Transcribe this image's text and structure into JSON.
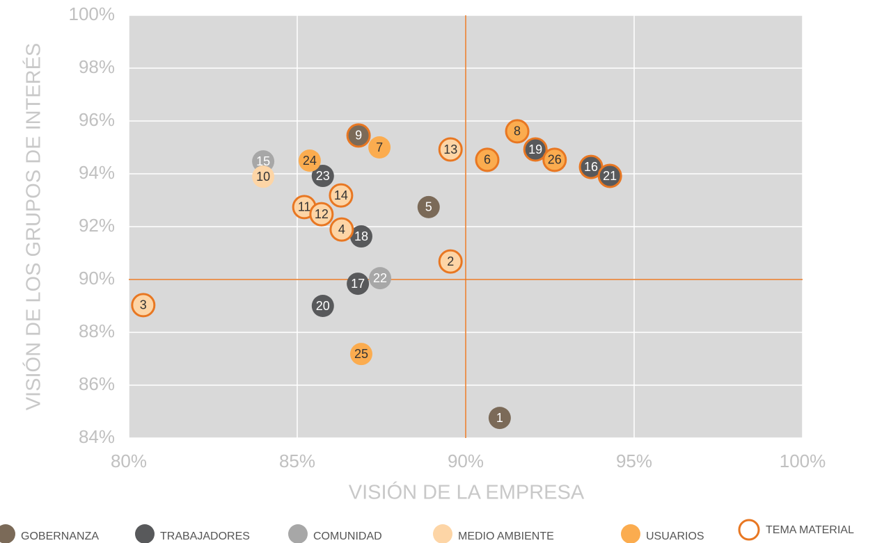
{
  "chart_data": {
    "type": "scatter",
    "x_label": "VISIÓN DE LA EMPRESA",
    "y_label": "VISIÓN DE LOS GRUPOS DE INTERÉS",
    "xlim": [
      80,
      100
    ],
    "ylim": [
      84,
      100
    ],
    "xticks": [
      {
        "value": 80,
        "label": "80%"
      },
      {
        "value": 85,
        "label": "85%"
      },
      {
        "value": 90,
        "label": "90%"
      },
      {
        "value": 95,
        "label": "95%"
      },
      {
        "value": 100,
        "label": "100%"
      }
    ],
    "yticks": [
      {
        "value": 84,
        "label": "84%"
      },
      {
        "value": 86,
        "label": "86%"
      },
      {
        "value": 88,
        "label": "88%"
      },
      {
        "value": 90,
        "label": "90%"
      },
      {
        "value": 92,
        "label": "92%"
      },
      {
        "value": 94,
        "label": "94%"
      },
      {
        "value": 96,
        "label": "96%"
      },
      {
        "value": 98,
        "label": "98%"
      },
      {
        "value": 100,
        "label": "100%"
      }
    ],
    "grid": true,
    "reference_lines": {
      "x": 90,
      "y": 90,
      "color": "#e87722"
    },
    "material_legend": {
      "label": "TEMA MATERIAL",
      "color": "#e87722"
    },
    "series": [
      {
        "name": "GOBERNANZA",
        "color": "#7b6a58",
        "labels": [
          "1",
          "5",
          "9"
        ],
        "x": [
          91.01,
          88.9,
          86.82
        ],
        "values": [
          84.76,
          92.74,
          95.45
        ],
        "material": [
          false,
          false,
          true
        ]
      },
      {
        "name": "TRABAJADORES",
        "color": "#58595b",
        "labels": [
          "16",
          "17",
          "18",
          "19",
          "20",
          "21",
          "23"
        ],
        "x": [
          93.72,
          86.8,
          86.9,
          92.07,
          85.76,
          94.28,
          85.76
        ],
        "values": [
          94.26,
          89.84,
          91.63,
          94.92,
          89.0,
          93.92,
          93.92
        ],
        "material": [
          true,
          false,
          false,
          true,
          false,
          true,
          false
        ]
      },
      {
        "name": "COMUNIDAD",
        "color": "#a7a7a7",
        "labels": [
          "15",
          "22"
        ],
        "x": [
          83.99,
          87.46
        ],
        "values": [
          94.47,
          90.05
        ],
        "material": [
          false,
          false
        ]
      },
      {
        "name": "MEDIO AMBIENTE",
        "color": "#fdd5a6",
        "labels": [
          "2",
          "3",
          "4",
          "10",
          "11",
          "12",
          "13",
          "14"
        ],
        "x": [
          89.55,
          80.43,
          86.32,
          83.99,
          85.21,
          85.72,
          89.55,
          86.3
        ],
        "values": [
          90.68,
          89.03,
          91.89,
          93.89,
          92.74,
          92.47,
          94.92,
          93.18
        ],
        "material": [
          true,
          true,
          true,
          false,
          true,
          true,
          true,
          true
        ]
      },
      {
        "name": "USUARIOS",
        "color": "#fbac4f",
        "labels": [
          "6",
          "7",
          "8",
          "24",
          "25",
          "26"
        ],
        "x": [
          90.64,
          87.44,
          91.53,
          85.37,
          86.9,
          92.64
        ],
        "values": [
          94.53,
          95.0,
          95.61,
          94.5,
          87.18,
          94.53
        ],
        "material": [
          true,
          false,
          true,
          false,
          false,
          true
        ]
      }
    ]
  }
}
